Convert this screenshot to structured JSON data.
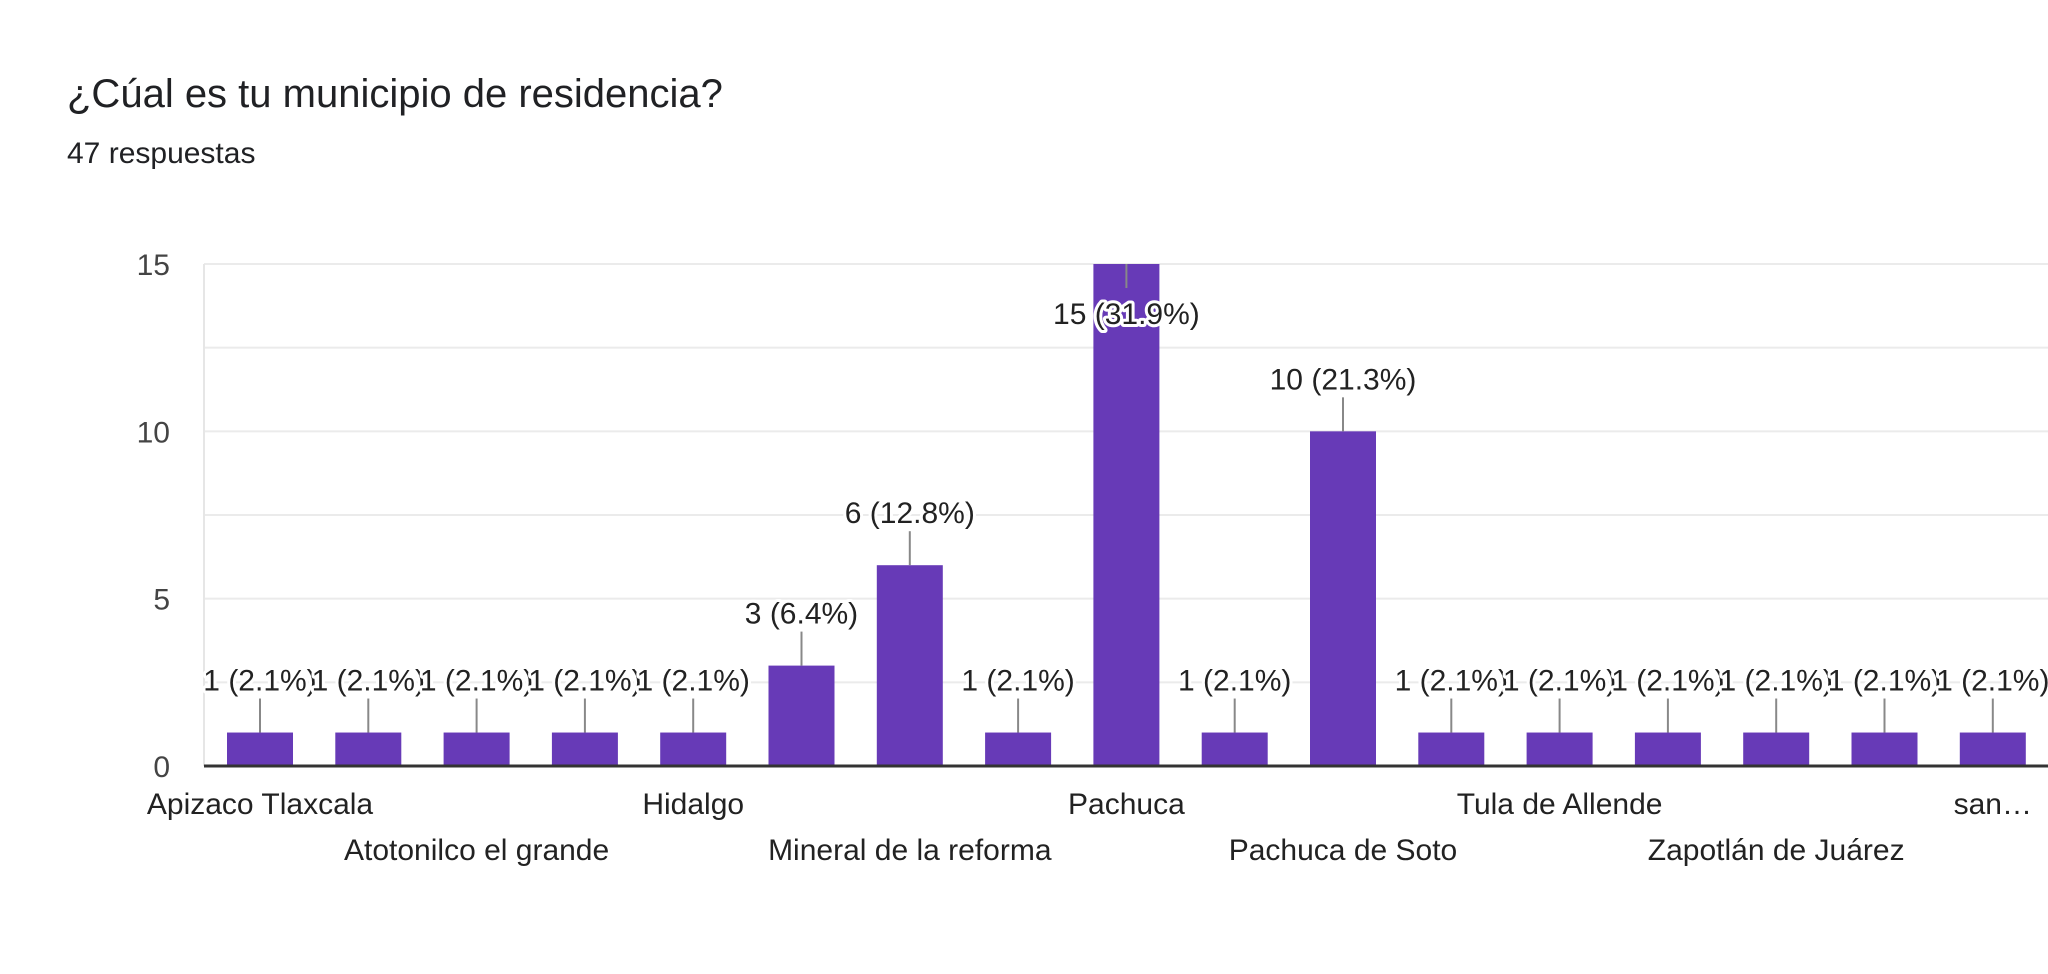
{
  "chart_data": {
    "type": "bar",
    "title": "¿Cúal es tu municipio de residencia?",
    "subtitle": "47 respuestas",
    "xlabel": "",
    "ylabel": "",
    "ylim": [
      0,
      15
    ],
    "yticks": [
      0,
      5,
      10,
      15
    ],
    "grid": true,
    "bar_color": "#673ab7",
    "categories": [
      "Apizaco Tlaxcala",
      "",
      "Atotonilco el grande",
      "",
      "Hidalgo",
      "",
      "Mineral de la reforma",
      "",
      "Pachuca",
      "",
      "Pachuca de Soto",
      "",
      "Tula de Allende",
      "",
      "Zapotlán de Juárez",
      "",
      "san…"
    ],
    "values": [
      1,
      1,
      1,
      1,
      1,
      3,
      6,
      1,
      15,
      1,
      10,
      1,
      1,
      1,
      1,
      1,
      1
    ],
    "data_labels": [
      "1 (2.1%)",
      "1 (2.1%)",
      "1 (2.1%)",
      "1 (2.1%)",
      "1 (2.1%)",
      "3 (6.4%)",
      "6 (12.8%)",
      "1 (2.1%)",
      "15 (31.9%)",
      "1 (2.1%)",
      "10 (21.3%)",
      "1 (2.1%)",
      "1 (2.1%)",
      "1 (2.1%)",
      "1 (2.1%)",
      "1 (2.1%)",
      "1 (2.1%)"
    ]
  }
}
